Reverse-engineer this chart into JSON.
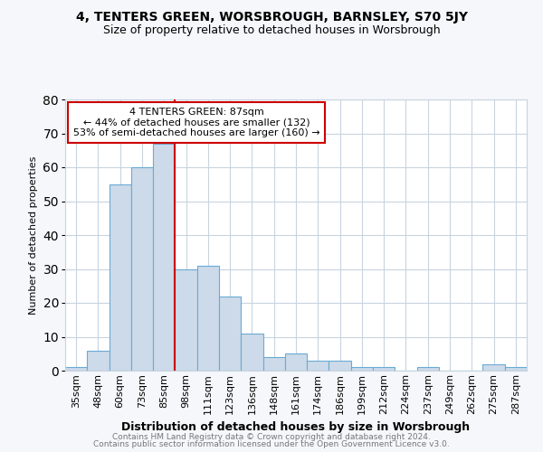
{
  "title1": "4, TENTERS GREEN, WORSBROUGH, BARNSLEY, S70 5JY",
  "title2": "Size of property relative to detached houses in Worsbrough",
  "xlabel": "Distribution of detached houses by size in Worsbrough",
  "ylabel": "Number of detached properties",
  "categories": [
    "35sqm",
    "48sqm",
    "60sqm",
    "73sqm",
    "85sqm",
    "98sqm",
    "111sqm",
    "123sqm",
    "136sqm",
    "148sqm",
    "161sqm",
    "174sqm",
    "186sqm",
    "199sqm",
    "212sqm",
    "224sqm",
    "237sqm",
    "249sqm",
    "262sqm",
    "275sqm",
    "287sqm"
  ],
  "values": [
    1,
    6,
    55,
    60,
    67,
    30,
    31,
    22,
    11,
    4,
    5,
    3,
    3,
    1,
    1,
    0,
    1,
    0,
    0,
    2,
    1
  ],
  "bar_color": "#cddaea",
  "bar_edge_color": "#6aaad4",
  "annotation_line_color": "#cc0000",
  "annotation_box_text_line1": "4 TENTERS GREEN: 87sqm",
  "annotation_box_text_line2": "← 44% of detached houses are smaller (132)",
  "annotation_box_text_line3": "53% of semi-detached houses are larger (160) →",
  "annotation_box_color": "white",
  "annotation_box_edge_color": "#cc0000",
  "ylim": [
    0,
    80
  ],
  "yticks": [
    0,
    10,
    20,
    30,
    40,
    50,
    60,
    70,
    80
  ],
  "footer1": "Contains HM Land Registry data © Crown copyright and database right 2024.",
  "footer2": "Contains public sector information licensed under the Open Government Licence v3.0.",
  "bg_color": "#f5f7fa",
  "plot_bg_color": "white",
  "grid_color": "#c8d4e0",
  "title1_fontsize": 10,
  "title2_fontsize": 9,
  "xlabel_fontsize": 9,
  "ylabel_fontsize": 8,
  "tick_fontsize": 8,
  "annot_fontsize": 8,
  "footer_fontsize": 6.5
}
